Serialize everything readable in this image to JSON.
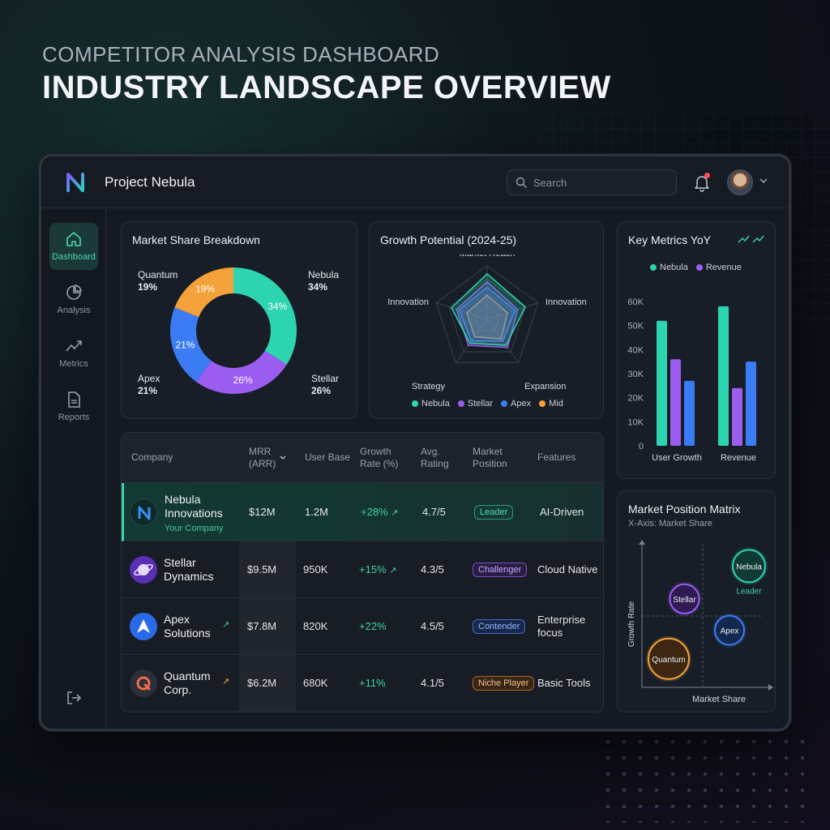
{
  "hero": {
    "subtitle": "COMPETITOR ANALYSIS DASHBOARD",
    "title": "INDUSTRY LANDSCAPE OVERVIEW"
  },
  "app": {
    "name": "Project Nebula",
    "logo_icon": "nebula-n-logo-icon",
    "search_placeholder": "Search",
    "has_notification": true
  },
  "sidebar": {
    "items": [
      {
        "label": "Dashboard",
        "icon": "home-icon",
        "active": true
      },
      {
        "label": "Analysis",
        "icon": "pie-chart-icon",
        "active": false
      },
      {
        "label": "Metrics",
        "icon": "trend-line-icon",
        "active": false
      },
      {
        "label": "Reports",
        "icon": "document-icon",
        "active": false
      }
    ],
    "logout_icon": "logout-icon"
  },
  "colors": {
    "nebula": "#2dd4b0",
    "stellar": "#9b5cf0",
    "apex": "#3b7cf5",
    "quantum": "#f5a13a",
    "accent": "#3fd3ad"
  },
  "market_share": {
    "title": "Market Share Breakdown",
    "labels": [
      {
        "name": "Quantum",
        "value": "19%"
      },
      {
        "name": "Nebula",
        "value": "34%"
      },
      {
        "name": "Apex",
        "value": "21%"
      },
      {
        "name": "Stellar",
        "value": "26%"
      }
    ]
  },
  "growth_potential": {
    "title": "Growth Potential (2024-25)",
    "axes": [
      "Market Reach",
      "Innovation",
      "Expansion",
      "Strategy",
      "Innovation"
    ],
    "legend": [
      "Nebula",
      "Stellar",
      "Apex",
      "Mid"
    ]
  },
  "key_metrics": {
    "title": "Key Metrics YoY",
    "legend": [
      "Nebula",
      "Revenue"
    ]
  },
  "matrix": {
    "title": "Market Position Matrix",
    "subtitle": "X-Axis: Market Share",
    "xlabel": "Market Share",
    "ylabel": "Growth Rate",
    "bubbles": [
      "Nebula",
      "Stellar",
      "Apex",
      "Quantum"
    ],
    "leader_label": "Leader"
  },
  "table": {
    "headers": {
      "company": "Company",
      "mrr_line1": "MRR",
      "mrr_line2": "(ARR)",
      "user_base": "User Base",
      "growth_line1": "Growth",
      "growth_line2": "Rate (%)",
      "rating_line1": "Avg.",
      "rating_line2": "Rating",
      "position_line1": "Market",
      "position_line2": "Position",
      "features": "Features"
    },
    "rows": [
      {
        "name1": "Nebula",
        "name2": "Innovations",
        "sub": "Your Company",
        "mrr": "$12M",
        "users": "1.2M",
        "growth": "+28%",
        "rating": "4.7/5",
        "position": "Leader",
        "features1": "AI-Driven",
        "features2": ""
      },
      {
        "name1": "Stellar",
        "name2": "Dynamics",
        "sub": "",
        "mrr": "$9.5M",
        "users": "950K",
        "growth": "+15%",
        "rating": "4.3/5",
        "position": "Challenger",
        "features1": "Cloud Native",
        "features2": ""
      },
      {
        "name1": "Apex",
        "name2": "Solutions",
        "sub": "",
        "mrr": "$7.8M",
        "users": "820K",
        "growth": "+22%",
        "rating": "4.5/5",
        "position": "Contender",
        "features1": "Enterprise",
        "features2": "focus"
      },
      {
        "name1": "Quantum",
        "name2": "Corp.",
        "sub": "",
        "mrr": "$6.2M",
        "users": "680K",
        "growth": "+11%",
        "rating": "4.1/5",
        "position": "Niche Player",
        "features1": "Basic Tools",
        "features2": ""
      }
    ]
  },
  "chart_data": [
    {
      "type": "pie",
      "title": "Market Share Breakdown",
      "categories": [
        "Nebula",
        "Stellar",
        "Apex",
        "Quantum"
      ],
      "values": [
        34,
        26,
        21,
        19
      ],
      "slice_labels": [
        "34%",
        "26%",
        "21%",
        "19%"
      ]
    },
    {
      "type": "radar",
      "title": "Growth Potential (2024-25)",
      "categories": [
        "Market Reach",
        "Innovation",
        "Expansion",
        "Strategy",
        "Innovation"
      ],
      "series": [
        {
          "name": "Nebula",
          "values": [
            0.85,
            0.75,
            0.6,
            0.55,
            0.7
          ]
        },
        {
          "name": "Stellar",
          "values": [
            0.7,
            0.6,
            0.65,
            0.6,
            0.6
          ]
        },
        {
          "name": "Apex",
          "values": [
            0.6,
            0.55,
            0.5,
            0.5,
            0.55
          ]
        },
        {
          "name": "Mid",
          "values": [
            0.45,
            0.4,
            0.45,
            0.4,
            0.4
          ]
        }
      ]
    },
    {
      "type": "bar",
      "title": "Key Metrics YoY",
      "categories": [
        "User Growth",
        "Revenue"
      ],
      "series": [
        {
          "name": "Nebula",
          "values": [
            52000,
            58000
          ]
        },
        {
          "name": "Revenue",
          "values": [
            36000,
            24000
          ]
        },
        {
          "values": [
            27000,
            35000
          ]
        }
      ],
      "yticks": [
        "0",
        "10K",
        "20K",
        "30K",
        "40K",
        "50K",
        "60K"
      ],
      "ylim": [
        0,
        60000
      ]
    },
    {
      "type": "scatter",
      "title": "Market Position Matrix",
      "xlabel": "Market Share",
      "ylabel": "Growth Rate",
      "points": [
        {
          "name": "Nebula",
          "x": 0.88,
          "y": 0.85
        },
        {
          "name": "Stellar",
          "x": 0.35,
          "y": 0.62
        },
        {
          "name": "Apex",
          "x": 0.72,
          "y": 0.4
        },
        {
          "name": "Quantum",
          "x": 0.22,
          "y": 0.2
        }
      ]
    }
  ]
}
